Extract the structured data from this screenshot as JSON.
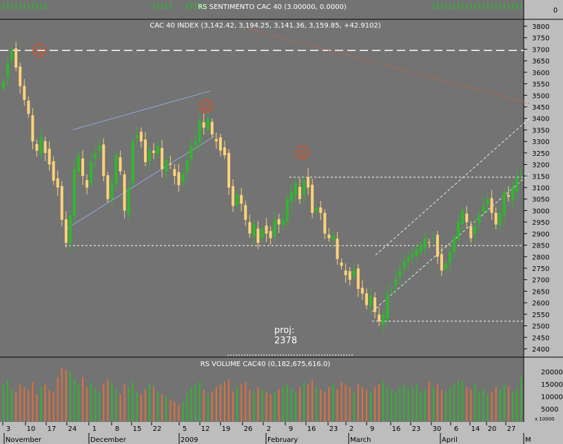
{
  "colors": {
    "background": "#737373",
    "panel_axis": "#bdbdbd",
    "candle_up": "#2eb82e",
    "candle_down": "#ffd27a",
    "volume_up": "#2eb82e",
    "volume_down": "#e0713a",
    "trend_line": "#8fa8d8",
    "resistance_line": "#e06030",
    "channel_line": "#dff7df",
    "level_line": "#ffffff",
    "frown_icon": "#e05020"
  },
  "sentiment_panel": {
    "title": "RS SENTIMENTO CAC 40 (3.00000, 0.0000)",
    "axis_label": "0"
  },
  "volume_panel": {
    "title": "RS VOLUME CAC40 (0,182,675,616.0)",
    "axis_labels": [
      "20000",
      "15000",
      "10000",
      "5000"
    ],
    "unit_label": "x 10000"
  },
  "annotations": {
    "proj_label": "proj:",
    "proj_value": "2378",
    "frown_icons": [
      "frown-icon",
      "frown-icon",
      "frown-icon"
    ]
  },
  "x_axis": {
    "day_labels": [
      "3",
      "10",
      "17",
      "24",
      "1",
      "8",
      "15",
      "22",
      "5",
      "12",
      "19",
      "26",
      "2",
      "9",
      "16",
      "23",
      "2",
      "9",
      "16",
      "23",
      "30",
      "6",
      "14",
      "20",
      "27"
    ],
    "month_labels": [
      "November",
      "December",
      "2009",
      "February",
      "March",
      "April",
      "M"
    ]
  },
  "chart_data": {
    "type": "candlestick",
    "title": "CAC 40 INDEX (3,142.42, 3,194.25, 3,141.36, 3,159.85, +42.9102)",
    "ylim": [
      2370,
      3830
    ],
    "y_ticks": [
      2400,
      2450,
      2500,
      2550,
      2600,
      2650,
      2700,
      2750,
      2800,
      2850,
      2900,
      2950,
      3000,
      3050,
      3100,
      3150,
      3200,
      3250,
      3300,
      3350,
      3400,
      3450,
      3500,
      3550,
      3600,
      3650,
      3700,
      3750,
      3800
    ],
    "levels": [
      3695,
      3145,
      2848,
      2520
    ],
    "grid": false,
    "candle_count": 125,
    "candles_close": [
      3560,
      3640,
      3695,
      3620,
      3540,
      3480,
      3420,
      3300,
      3260,
      3320,
      3250,
      3200,
      3130,
      3100,
      2960,
      2860,
      2980,
      3180,
      3240,
      3150,
      3100,
      3210,
      3250,
      3280,
      3150,
      3050,
      3120,
      3240,
      3170,
      3000,
      3100,
      3300,
      3330,
      3300,
      3210,
      3260,
      3250,
      3280,
      3180,
      3220,
      3200,
      3150,
      3110,
      3160,
      3220,
      3280,
      3300,
      3390,
      3360,
      3400,
      3330,
      3300,
      3260,
      3240,
      3100,
      3020,
      3070,
      3030,
      2960,
      2900,
      2940,
      2860,
      2920,
      2900,
      2880,
      2960,
      2940,
      2960,
      3050,
      3080,
      3120,
      3050,
      3130,
      3100,
      2990,
      3010,
      2990,
      2900,
      2880,
      2890,
      2790,
      2760,
      2720,
      2700,
      2740,
      2660,
      2640,
      2590,
      2630,
      2560,
      2520,
      2550,
      2640,
      2660,
      2700,
      2740,
      2780,
      2800,
      2810,
      2830,
      2850,
      2880,
      2860,
      2880,
      2800,
      2740,
      2770,
      2820,
      2880,
      2950,
      3000,
      2950,
      2880,
      2930,
      2980,
      3020,
      3050,
      2990,
      2940,
      2990,
      3080,
      3060,
      3100,
      3142,
      3160
    ],
    "volumes": [
      15000,
      17000,
      13000,
      12000,
      15000,
      14000,
      13000,
      16000,
      11000,
      14000,
      15000,
      13000,
      12000,
      18000,
      22000,
      21000,
      20000,
      17000,
      15000,
      18000,
      14000,
      16000,
      13000,
      12000,
      15000,
      17000,
      16000,
      13000,
      11000,
      15000,
      14000,
      16000,
      12000,
      11000,
      13000,
      15000,
      14000,
      12000,
      11000,
      10000,
      9000,
      8000,
      7000,
      8000,
      12000,
      14000,
      15000,
      16000,
      13000,
      11000,
      12000,
      14000,
      15000,
      16000,
      17000,
      12000,
      14000,
      15000,
      16000,
      13000,
      12000,
      14000,
      13000,
      12000,
      11000,
      12000,
      13000,
      14000,
      15000,
      13000,
      12000,
      14000,
      16000,
      15000,
      17000,
      14000,
      13000,
      12000,
      14000,
      15000,
      13000,
      16000,
      15000,
      14000,
      12000,
      15000,
      14000,
      13000,
      12000,
      14000,
      15000,
      16000,
      14000,
      13000,
      12000,
      14000,
      15000,
      13000,
      14000,
      15000,
      12000,
      13000,
      16000,
      14000,
      15000,
      13000,
      12000,
      14000,
      15000,
      17000,
      16000,
      14000,
      13000,
      15000,
      12000,
      13000,
      11000,
      12000,
      14000,
      13000,
      15000,
      14000,
      12000,
      13000,
      18000
    ]
  }
}
